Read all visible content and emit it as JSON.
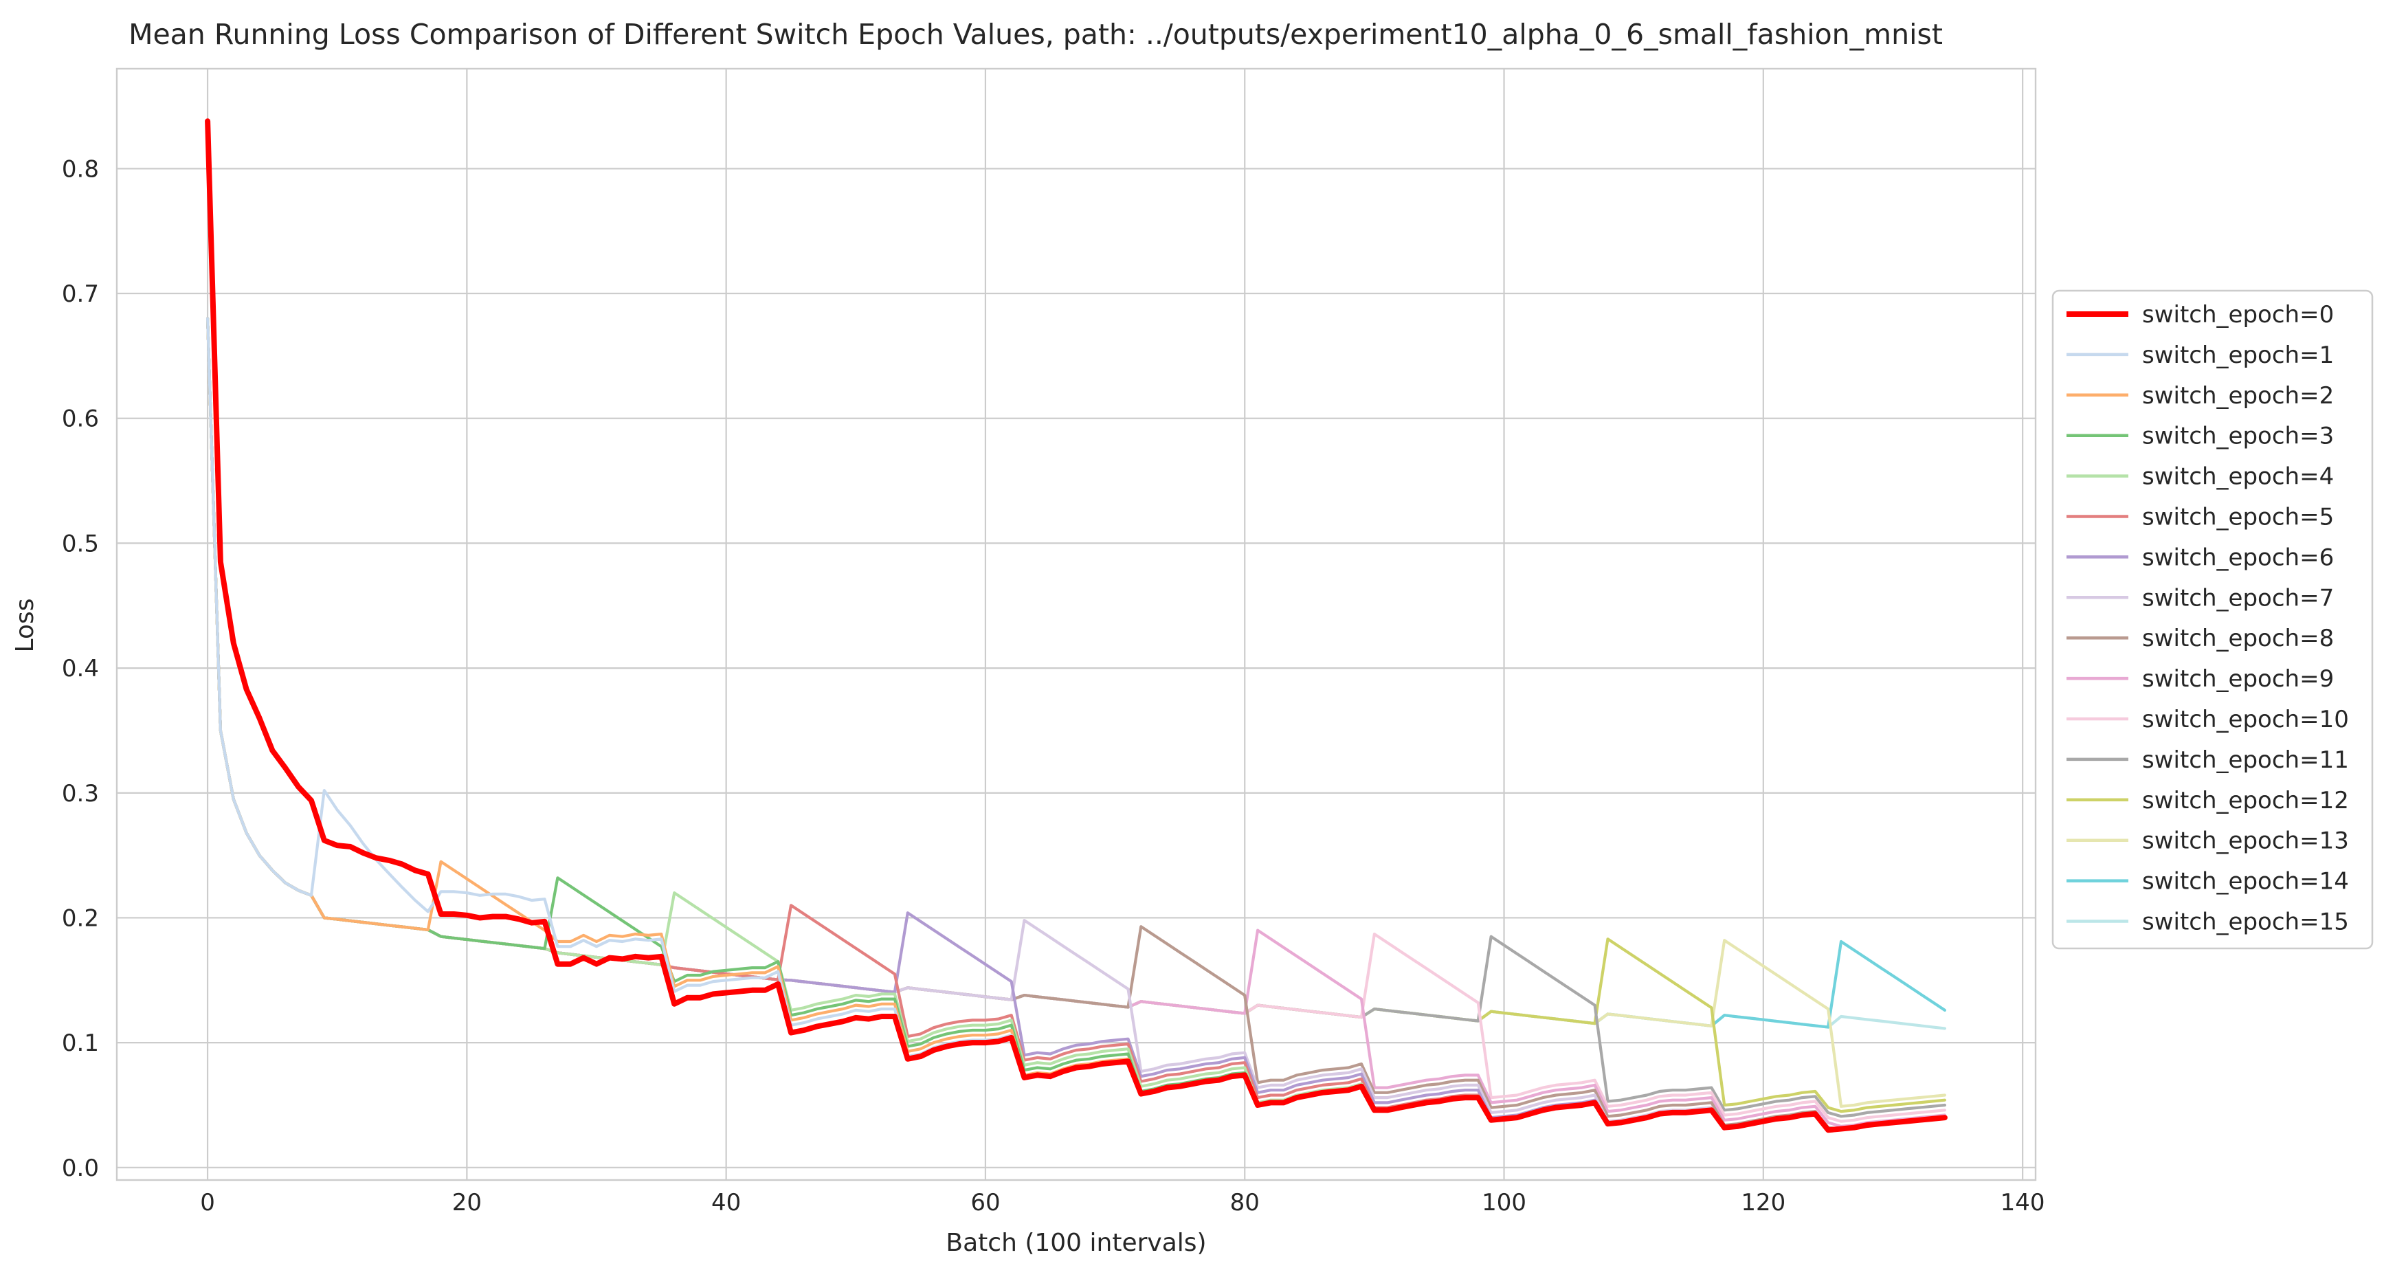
{
  "chart_data": {
    "type": "line",
    "title": "Mean Running Loss Comparison of Different Switch Epoch Values, path: ../outputs/experiment10_alpha_0_6_small_fashion_mnist",
    "xlabel": "Batch (100 intervals)",
    "ylabel": "Loss",
    "xlim": [
      -7,
      141
    ],
    "ylim": [
      -0.01,
      0.88
    ],
    "x_ticks": [
      0,
      20,
      40,
      60,
      80,
      100,
      120,
      140
    ],
    "y_ticks": [
      0.0,
      0.1,
      0.2,
      0.3,
      0.4,
      0.5,
      0.6,
      0.7,
      0.8
    ],
    "x_tick_labels": [
      "0",
      "20",
      "40",
      "60",
      "80",
      "100",
      "120",
      "140"
    ],
    "y_tick_labels": [
      "0.0",
      "0.1",
      "0.2",
      "0.3",
      "0.4",
      "0.5",
      "0.6",
      "0.7",
      "0.8"
    ],
    "grid": true,
    "legend": "center-right-outside",
    "x_max_index": 134,
    "initial_curve": [
      0.68,
      0.35,
      0.295,
      0.268,
      0.25,
      0.238,
      0.228,
      0.222,
      0.218
    ],
    "step_bases": [
      0.2,
      0.185,
      0.172,
      0.16,
      0.15,
      0.144,
      0.138,
      0.133,
      0.13,
      0.127,
      0.125,
      0.123,
      0.122,
      0.121,
      0.12
    ],
    "series": [
      {
        "name": "switch_epoch=0",
        "color": "#ff0000",
        "switch": 0
      },
      {
        "name": "switch_epoch=1",
        "color": "#c6d9ee",
        "switch": 1
      },
      {
        "name": "switch_epoch=2",
        "color": "#fdae6b",
        "switch": 2
      },
      {
        "name": "switch_epoch=3",
        "color": "#74c476",
        "switch": 3
      },
      {
        "name": "switch_epoch=4",
        "color": "#b5e2a8",
        "switch": 4
      },
      {
        "name": "switch_epoch=5",
        "color": "#e37f7f",
        "switch": 5
      },
      {
        "name": "switch_epoch=6",
        "color": "#b09ad1",
        "switch": 6
      },
      {
        "name": "switch_epoch=7",
        "color": "#d7c9e3",
        "switch": 7
      },
      {
        "name": "switch_epoch=8",
        "color": "#b99a8f",
        "switch": 8
      },
      {
        "name": "switch_epoch=9",
        "color": "#e8a9d3",
        "switch": 9
      },
      {
        "name": "switch_epoch=10",
        "color": "#f6cbdd",
        "switch": 10
      },
      {
        "name": "switch_epoch=11",
        "color": "#a8a8a8",
        "switch": 11
      },
      {
        "name": "switch_epoch=12",
        "color": "#cdd267",
        "switch": 12
      },
      {
        "name": "switch_epoch=13",
        "color": "#e6e6b0",
        "switch": 13
      },
      {
        "name": "switch_epoch=14",
        "color": "#6fd2dc",
        "switch": 14
      },
      {
        "name": "switch_epoch=15",
        "color": "#bce6e8",
        "switch": 15
      }
    ],
    "red_curve": [
      0.838,
      0.485,
      0.42,
      0.383,
      0.36,
      0.334,
      0.32,
      0.305,
      0.294,
      0.262,
      0.258,
      0.257,
      0.252,
      0.248,
      0.246,
      0.243,
      0.238,
      0.235,
      0.203,
      0.203,
      0.202,
      0.2,
      0.201,
      0.201,
      0.199,
      0.196,
      0.197,
      0.163,
      0.163,
      0.168,
      0.163,
      0.168,
      0.167,
      0.169,
      0.168,
      0.169,
      0.131,
      0.136,
      0.136,
      0.139,
      0.14,
      0.141,
      0.142,
      0.142,
      0.147,
      0.108,
      0.11,
      0.113,
      0.115,
      0.117,
      0.12,
      0.119,
      0.121,
      0.121,
      0.087,
      0.089,
      0.094,
      0.097,
      0.099,
      0.1,
      0.1,
      0.101,
      0.104,
      0.072,
      0.074,
      0.073,
      0.077,
      0.08,
      0.081,
      0.083,
      0.084,
      0.085,
      0.059,
      0.061,
      0.064,
      0.065,
      0.067,
      0.069,
      0.07,
      0.073,
      0.074,
      0.05,
      0.052,
      0.052,
      0.056,
      0.058,
      0.06,
      0.061,
      0.062,
      0.065,
      0.046,
      0.046,
      0.048,
      0.05,
      0.052,
      0.053,
      0.055,
      0.056,
      0.056,
      0.038,
      0.039,
      0.04,
      0.043,
      0.046,
      0.048,
      0.049,
      0.05,
      0.052,
      0.035,
      0.036,
      0.038,
      0.04,
      0.043,
      0.044,
      0.044,
      0.045,
      0.046,
      0.032,
      0.033,
      0.035,
      0.037,
      0.039,
      0.04,
      0.042,
      0.043,
      0.03,
      0.031,
      0.032,
      0.034,
      0.035,
      0.036,
      0.037,
      0.038,
      0.039,
      0.04
    ]
  }
}
